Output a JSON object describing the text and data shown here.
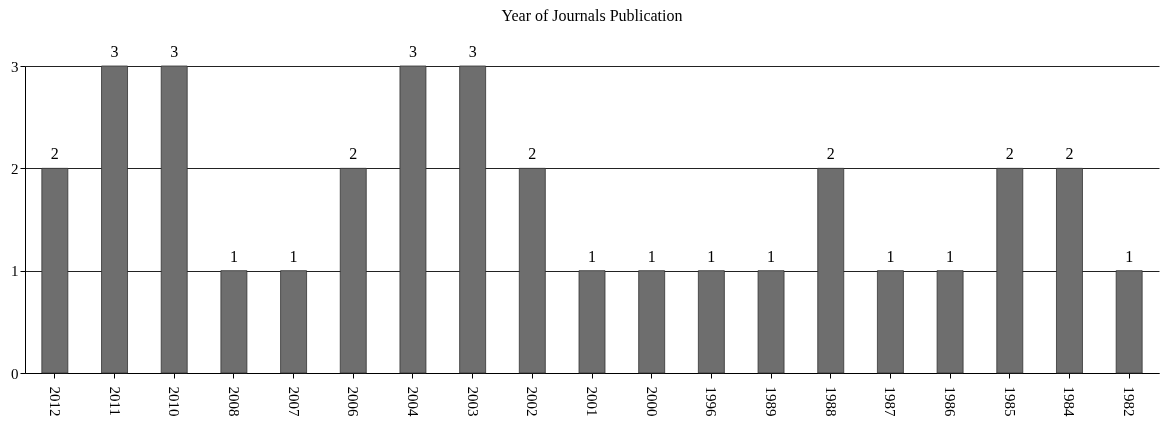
{
  "chart_data": {
    "type": "bar",
    "title": "Year of Journals Publication",
    "categories": [
      "2012",
      "2011",
      "2010",
      "2008",
      "2007",
      "2006",
      "2004",
      "2003",
      "2002",
      "2001",
      "2000",
      "1996",
      "1989",
      "1988",
      "1987",
      "1986",
      "1985",
      "1984",
      "1982"
    ],
    "values": [
      2,
      3,
      3,
      1,
      1,
      2,
      3,
      3,
      2,
      1,
      1,
      1,
      1,
      2,
      1,
      1,
      2,
      2,
      1
    ],
    "color": "#6e6e6e",
    "ylim": [
      0,
      3
    ],
    "yticks": [
      0,
      1,
      2,
      3
    ],
    "grid": "y",
    "data_labels": true
  }
}
